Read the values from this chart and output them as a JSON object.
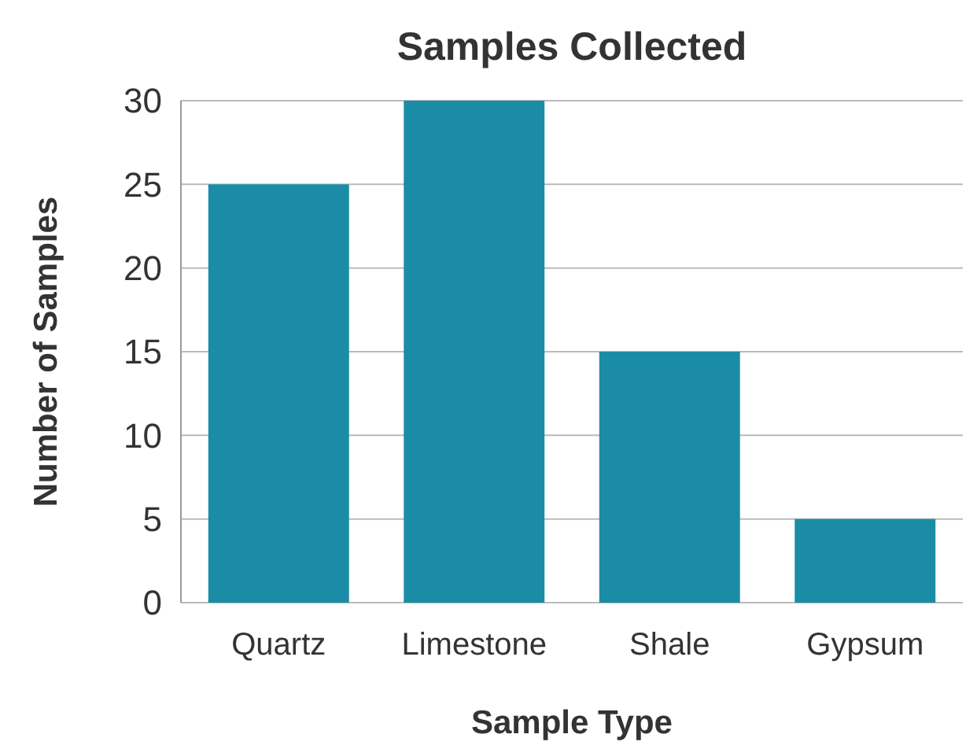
{
  "chart_data": {
    "type": "bar",
    "title": "Samples Collected",
    "xlabel": "Sample Type",
    "ylabel": "Number of Samples",
    "categories": [
      "Quartz",
      "Limestone",
      "Shale",
      "Gypsum"
    ],
    "values": [
      25,
      30,
      15,
      5
    ],
    "color": "#1a8ca6",
    "ylim": [
      0,
      30
    ],
    "yticks": [
      0,
      5,
      10,
      15,
      20,
      25,
      30
    ],
    "grid": "y"
  }
}
